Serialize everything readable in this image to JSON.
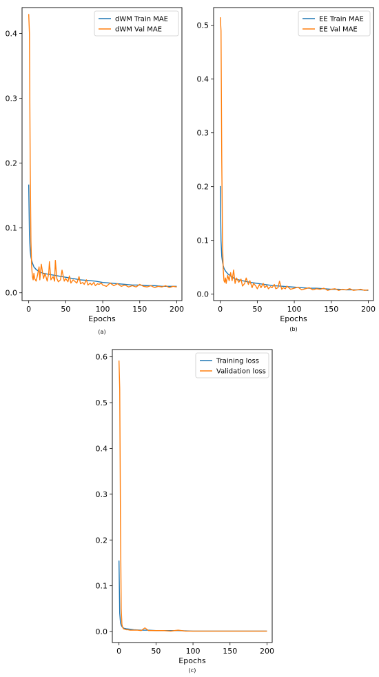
{
  "colors": {
    "train": "#1f77b4",
    "val": "#ff7f0e",
    "frame": "#000000"
  },
  "chart_data": [
    {
      "type": "line",
      "caption": "(a)",
      "xlabel": "Epochs",
      "ylabel": "",
      "xlim": [
        -9,
        207
      ],
      "ylim": [
        -0.012,
        0.44
      ],
      "xticks": [
        0,
        50,
        100,
        150,
        200
      ],
      "yticks": [
        0.0,
        0.1,
        0.2,
        0.3,
        0.4
      ],
      "ytick_labels": [
        "0.0",
        "0.1",
        "0.2",
        "0.3",
        "0.4"
      ],
      "legend": "top-right",
      "series": [
        {
          "name": "dWM Train MAE",
          "color": "#1f77b4",
          "x": [
            0,
            1,
            2,
            3,
            4,
            5,
            7,
            10,
            15,
            20,
            30,
            40,
            50,
            60,
            70,
            80,
            90,
            100,
            110,
            120,
            130,
            140,
            150,
            160,
            170,
            180,
            190,
            200
          ],
          "y": [
            0.167,
            0.09,
            0.065,
            0.055,
            0.05,
            0.046,
            0.04,
            0.036,
            0.032,
            0.03,
            0.028,
            0.026,
            0.024,
            0.022,
            0.02,
            0.019,
            0.018,
            0.016,
            0.015,
            0.014,
            0.013,
            0.012,
            0.012,
            0.011,
            0.011,
            0.01,
            0.01,
            0.01
          ]
        },
        {
          "name": "dWM Val MAE",
          "color": "#ff7f0e",
          "x": [
            0,
            1,
            2,
            3,
            4,
            5,
            6,
            7,
            8,
            10,
            12,
            14,
            15,
            17,
            20,
            22,
            25,
            27,
            28,
            30,
            33,
            35,
            36,
            38,
            40,
            43,
            45,
            48,
            50,
            53,
            55,
            57,
            60,
            63,
            65,
            68,
            70,
            73,
            75,
            78,
            80,
            83,
            85,
            88,
            90,
            93,
            95,
            98,
            100,
            105,
            110,
            115,
            120,
            125,
            130,
            135,
            140,
            145,
            150,
            155,
            160,
            165,
            170,
            175,
            180,
            185,
            190,
            195,
            200
          ],
          "y": [
            0.43,
            0.4,
            0.2,
            0.08,
            0.04,
            0.025,
            0.02,
            0.03,
            0.022,
            0.018,
            0.028,
            0.04,
            0.02,
            0.044,
            0.022,
            0.03,
            0.018,
            0.03,
            0.048,
            0.02,
            0.025,
            0.018,
            0.05,
            0.022,
            0.017,
            0.02,
            0.035,
            0.018,
            0.022,
            0.017,
            0.026,
            0.015,
            0.02,
            0.017,
            0.015,
            0.025,
            0.014,
            0.016,
            0.013,
            0.02,
            0.012,
            0.015,
            0.012,
            0.016,
            0.011,
            0.014,
            0.013,
            0.015,
            0.012,
            0.01,
            0.015,
            0.011,
            0.014,
            0.01,
            0.012,
            0.009,
            0.011,
            0.009,
            0.013,
            0.01,
            0.009,
            0.011,
            0.008,
            0.01,
            0.009,
            0.011,
            0.008,
            0.01,
            0.009
          ]
        }
      ]
    },
    {
      "type": "line",
      "caption": "(b)",
      "xlabel": "Epochs",
      "ylabel": "",
      "xlim": [
        -9,
        207
      ],
      "ylim": [
        -0.012,
        0.533
      ],
      "xticks": [
        0,
        50,
        100,
        150,
        200
      ],
      "yticks": [
        0.0,
        0.1,
        0.2,
        0.3,
        0.4,
        0.5
      ],
      "ytick_labels": [
        "0.0",
        "0.1",
        "0.2",
        "0.3",
        "0.4",
        "0.5"
      ],
      "legend": "top-right",
      "series": [
        {
          "name": "EE Train MAE",
          "color": "#1f77b4",
          "x": [
            0,
            1,
            2,
            3,
            4,
            5,
            7,
            10,
            15,
            20,
            30,
            40,
            50,
            60,
            70,
            80,
            90,
            100,
            110,
            120,
            130,
            140,
            150,
            160,
            170,
            180,
            190,
            200
          ],
          "y": [
            0.201,
            0.1,
            0.07,
            0.06,
            0.053,
            0.048,
            0.043,
            0.038,
            0.033,
            0.028,
            0.025,
            0.022,
            0.02,
            0.018,
            0.016,
            0.015,
            0.014,
            0.013,
            0.012,
            0.011,
            0.011,
            0.01,
            0.009,
            0.009,
            0.008,
            0.008,
            0.008,
            0.007
          ]
        },
        {
          "name": "EE Val MAE",
          "color": "#ff7f0e",
          "x": [
            0,
            1,
            2,
            3,
            4,
            5,
            6,
            7,
            8,
            10,
            12,
            14,
            16,
            18,
            20,
            22,
            25,
            28,
            30,
            33,
            35,
            38,
            40,
            43,
            45,
            48,
            50,
            53,
            55,
            58,
            60,
            63,
            65,
            68,
            70,
            73,
            75,
            78,
            80,
            83,
            85,
            88,
            90,
            95,
            100,
            105,
            110,
            115,
            120,
            125,
            130,
            135,
            140,
            145,
            150,
            155,
            160,
            165,
            170,
            175,
            180,
            185,
            190,
            195,
            200
          ],
          "y": [
            0.515,
            0.49,
            0.25,
            0.1,
            0.045,
            0.025,
            0.022,
            0.03,
            0.02,
            0.035,
            0.025,
            0.04,
            0.025,
            0.045,
            0.02,
            0.03,
            0.022,
            0.028,
            0.015,
            0.02,
            0.03,
            0.018,
            0.025,
            0.012,
            0.02,
            0.015,
            0.01,
            0.018,
            0.012,
            0.02,
            0.012,
            0.016,
            0.01,
            0.014,
            0.012,
            0.018,
            0.01,
            0.012,
            0.024,
            0.009,
            0.012,
            0.01,
            0.015,
            0.009,
            0.011,
            0.013,
            0.008,
            0.01,
            0.012,
            0.008,
            0.01,
            0.009,
            0.011,
            0.007,
            0.009,
            0.01,
            0.007,
            0.009,
            0.008,
            0.01,
            0.007,
            0.008,
            0.009,
            0.007,
            0.008
          ]
        }
      ]
    },
    {
      "type": "line",
      "caption": "(c)",
      "xlabel": "Epochs",
      "ylabel": "",
      "xlim": [
        -9,
        207
      ],
      "ylim": [
        -0.024,
        0.616
      ],
      "xticks": [
        0,
        50,
        100,
        150,
        200
      ],
      "yticks": [
        0.0,
        0.1,
        0.2,
        0.3,
        0.4,
        0.5,
        0.6
      ],
      "ytick_labels": [
        "0.0",
        "0.1",
        "0.2",
        "0.3",
        "0.4",
        "0.5",
        "0.6"
      ],
      "legend": "top-right",
      "series": [
        {
          "name": "Training loss",
          "color": "#1f77b4",
          "x": [
            0,
            1,
            2,
            3,
            4,
            5,
            7,
            10,
            15,
            20,
            30,
            40,
            50,
            60,
            80,
            100,
            150,
            200
          ],
          "y": [
            0.155,
            0.04,
            0.02,
            0.014,
            0.011,
            0.009,
            0.007,
            0.006,
            0.005,
            0.004,
            0.003,
            0.003,
            0.002,
            0.002,
            0.002,
            0.001,
            0.001,
            0.001
          ]
        },
        {
          "name": "Validation loss",
          "color": "#ff7f0e",
          "x": [
            0,
            1,
            2,
            3,
            4,
            5,
            6,
            8,
            10,
            12,
            15,
            20,
            25,
            30,
            35,
            40,
            50,
            60,
            70,
            80,
            90,
            100,
            120,
            150,
            180,
            200
          ],
          "y": [
            0.592,
            0.53,
            0.25,
            0.05,
            0.015,
            0.009,
            0.006,
            0.005,
            0.004,
            0.004,
            0.003,
            0.003,
            0.003,
            0.002,
            0.008,
            0.002,
            0.002,
            0.002,
            0.001,
            0.003,
            0.001,
            0.001,
            0.001,
            0.001,
            0.001,
            0.001
          ]
        }
      ]
    }
  ]
}
